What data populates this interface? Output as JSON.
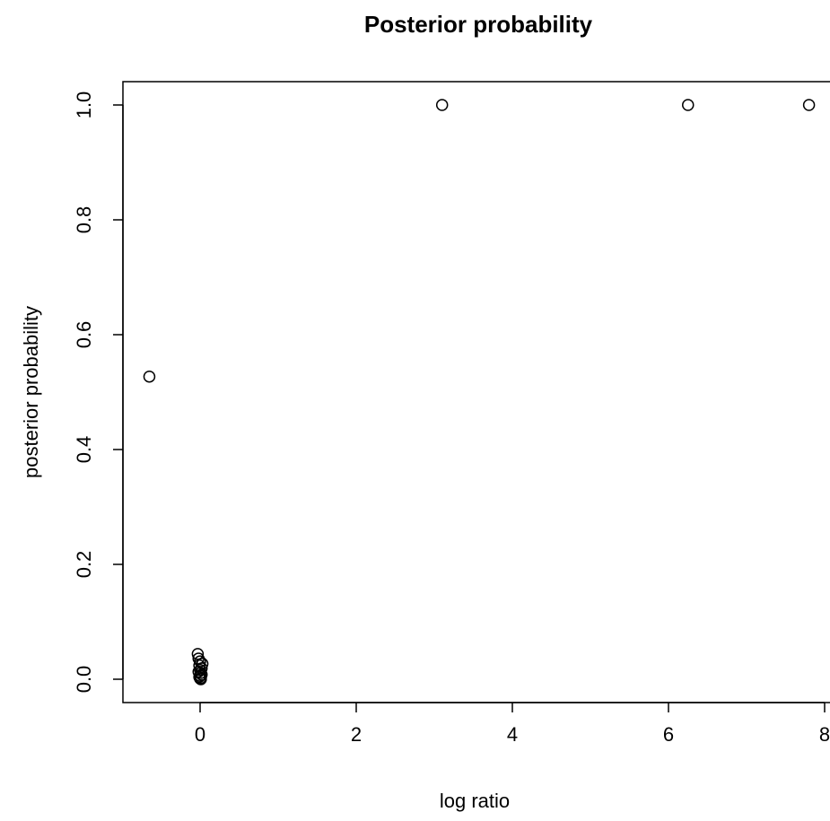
{
  "chart_data": {
    "type": "scatter",
    "title": "Posterior probability",
    "xlabel": "log ratio",
    "ylabel": "posterior probability",
    "xlim": [
      -1.0,
      8.0
    ],
    "ylim": [
      -0.04,
      1.04
    ],
    "xticks": [
      0,
      2,
      4,
      6,
      8
    ],
    "xtick_labels": [
      "0",
      "2",
      "4",
      "6",
      "8"
    ],
    "yticks": [
      0.0,
      0.2,
      0.4,
      0.6,
      0.8,
      1.0
    ],
    "ytick_labels": [
      "0.0",
      "0.2",
      "0.4",
      "0.6",
      "0.8",
      "1.0"
    ],
    "grid": false,
    "marker": "open-circle",
    "color": "#000000",
    "points": [
      {
        "x": -0.65,
        "y": 0.527
      },
      {
        "x": 3.1,
        "y": 1.0
      },
      {
        "x": 6.25,
        "y": 1.0
      },
      {
        "x": 7.8,
        "y": 1.0
      },
      {
        "x": -0.03,
        "y": 0.044
      },
      {
        "x": -0.02,
        "y": 0.036
      },
      {
        "x": 0.0,
        "y": 0.031
      },
      {
        "x": 0.03,
        "y": 0.027
      },
      {
        "x": -0.01,
        "y": 0.024
      },
      {
        "x": 0.02,
        "y": 0.019
      },
      {
        "x": 0.0,
        "y": 0.016
      },
      {
        "x": -0.02,
        "y": 0.013
      },
      {
        "x": 0.01,
        "y": 0.011
      },
      {
        "x": 0.02,
        "y": 0.008
      },
      {
        "x": 0.0,
        "y": 0.006
      },
      {
        "x": -0.01,
        "y": 0.004
      },
      {
        "x": 0.01,
        "y": 0.002
      },
      {
        "x": 0.0,
        "y": 0.001
      },
      {
        "x": 0.01,
        "y": 0.0
      }
    ]
  }
}
